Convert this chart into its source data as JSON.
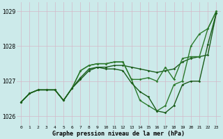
{
  "background_color": "#cceaea",
  "grid_color": "#d4b8c8",
  "line_color1": "#1a5c1a",
  "line_color2": "#2d7a2d",
  "xlabel": "Graphe pression niveau de la mer (hPa)",
  "ylim": [
    1025.75,
    1029.25
  ],
  "xlim": [
    -0.5,
    23.5
  ],
  "yticks": [
    1026,
    1027,
    1028,
    1029
  ],
  "xticks": [
    0,
    1,
    2,
    3,
    4,
    5,
    6,
    7,
    8,
    9,
    10,
    11,
    12,
    13,
    14,
    15,
    16,
    17,
    18,
    19,
    20,
    21,
    22,
    23
  ],
  "series": [
    {
      "y": [
        1026.4,
        1026.65,
        1026.75,
        1026.75,
        1026.75,
        1026.45,
        1026.8,
        1027.1,
        1027.35,
        1027.4,
        1027.4,
        1027.45,
        1027.45,
        1027.4,
        1027.35,
        1027.3,
        1027.25,
        1027.3,
        1027.35,
        1027.55,
        1027.65,
        1027.7,
        1027.75,
        1028.95
      ],
      "color": "#1a5c1a",
      "lw": 1.0
    },
    {
      "y": [
        1026.4,
        1026.65,
        1026.75,
        1026.75,
        1026.75,
        1026.45,
        1026.8,
        1027.3,
        1027.45,
        1027.5,
        1027.5,
        1027.55,
        1027.55,
        1027.05,
        1026.45,
        1026.3,
        1026.15,
        1026.3,
        1026.9,
        1027.0,
        1028.0,
        1028.35,
        1028.5,
        1029.0
      ],
      "color": "#2d7a2d",
      "lw": 1.0
    },
    {
      "y": [
        1026.4,
        1026.65,
        1026.75,
        1026.75,
        1026.75,
        1026.45,
        1026.8,
        1027.3,
        1027.45,
        1027.5,
        1027.5,
        1027.55,
        1027.55,
        1027.05,
        1027.05,
        1027.1,
        1027.0,
        1027.4,
        1027.05,
        1027.65,
        1027.7,
        1027.7,
        1028.5,
        1029.0
      ],
      "color": "#2d7a2d",
      "lw": 1.0
    },
    {
      "y": [
        1026.4,
        1026.65,
        1026.75,
        1026.75,
        1026.75,
        1026.45,
        1026.8,
        1027.05,
        1027.3,
        1027.4,
        1027.35,
        1027.35,
        1027.3,
        1026.95,
        1026.7,
        1026.55,
        1026.15,
        1026.1,
        1026.3,
        1026.9,
        1027.0,
        1027.0,
        1028.05,
        1028.95
      ],
      "color": "#1a5c1a",
      "lw": 1.0
    }
  ]
}
